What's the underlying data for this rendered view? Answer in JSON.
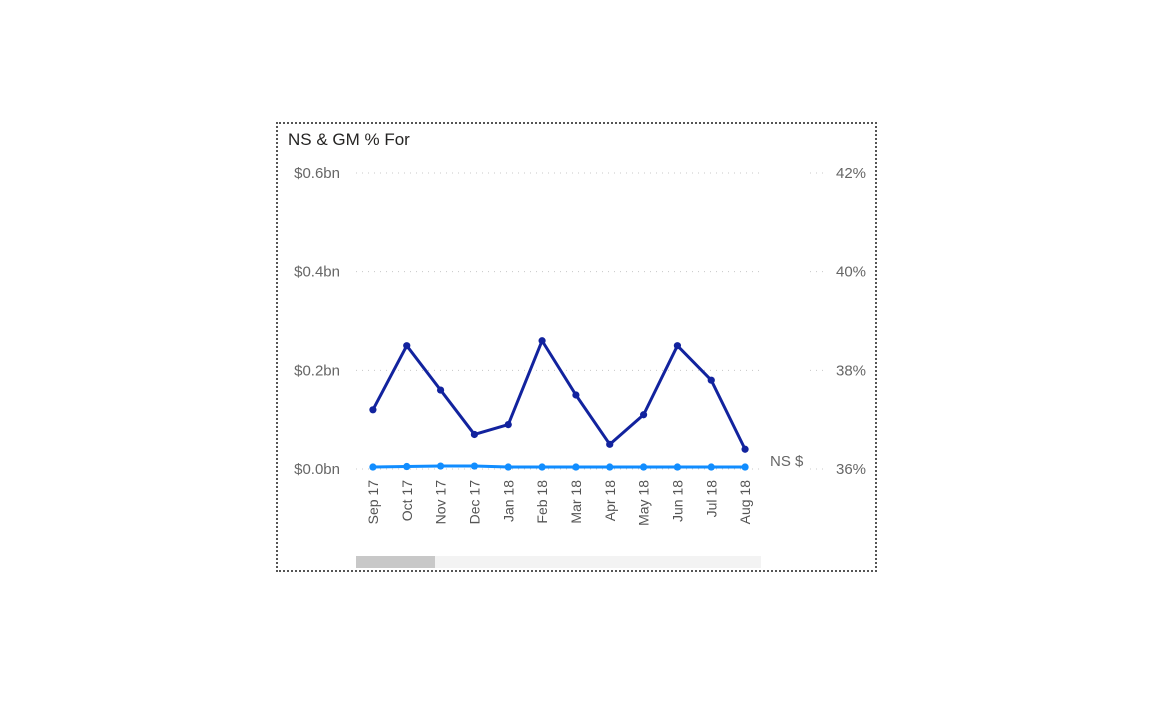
{
  "visual": {
    "title": "NS & GM % For"
  },
  "chart_data": {
    "type": "line",
    "title": "NS & GM % For",
    "categories": [
      "Sep 17",
      "Oct 17",
      "Nov 17",
      "Dec 17",
      "Jan 18",
      "Feb 18",
      "Mar 18",
      "Apr 18",
      "May 18",
      "Jun 18",
      "Jul 18",
      "Aug 18"
    ],
    "y_left": {
      "range": [
        0,
        0.6
      ],
      "ticks": [
        0,
        0.2,
        0.4,
        0.6
      ],
      "tick_labels": [
        "$0.0bn",
        "$0.2bn",
        "$0.4bn",
        "$0.6bn"
      ]
    },
    "y_right": {
      "range": [
        36,
        42
      ],
      "ticks": [
        36,
        38,
        40,
        42
      ],
      "tick_labels": [
        "36%",
        "38%",
        "40%",
        "42%"
      ]
    },
    "grid": true,
    "series": [
      {
        "name": "NS $",
        "axis": "left",
        "color": "#118DFF",
        "values": [
          0.004,
          0.005,
          0.006,
          0.006,
          0.004,
          0.004,
          0.004,
          0.004,
          0.004,
          0.004,
          0.004,
          0.004
        ]
      },
      {
        "axis": "right",
        "color": "#12239E",
        "values": [
          37.2,
          38.5,
          37.6,
          36.7,
          36.9,
          38.6,
          37.5,
          36.5,
          37.1,
          38.5,
          37.8,
          36.4
        ]
      }
    ]
  }
}
